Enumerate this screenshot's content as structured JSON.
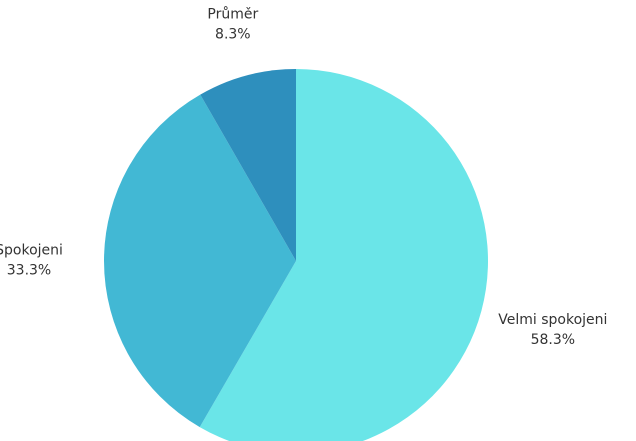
{
  "chart_data": {
    "type": "pie",
    "categories": [
      "Velmi spokojeni",
      "Spokojeni",
      "Průměr"
    ],
    "values": [
      58.3,
      33.3,
      8.3
    ],
    "value_labels": [
      "58.3%",
      "33.3%",
      "8.3%"
    ],
    "colors": [
      "#6ae5e8",
      "#42b8d4",
      "#2e8fbd"
    ]
  }
}
